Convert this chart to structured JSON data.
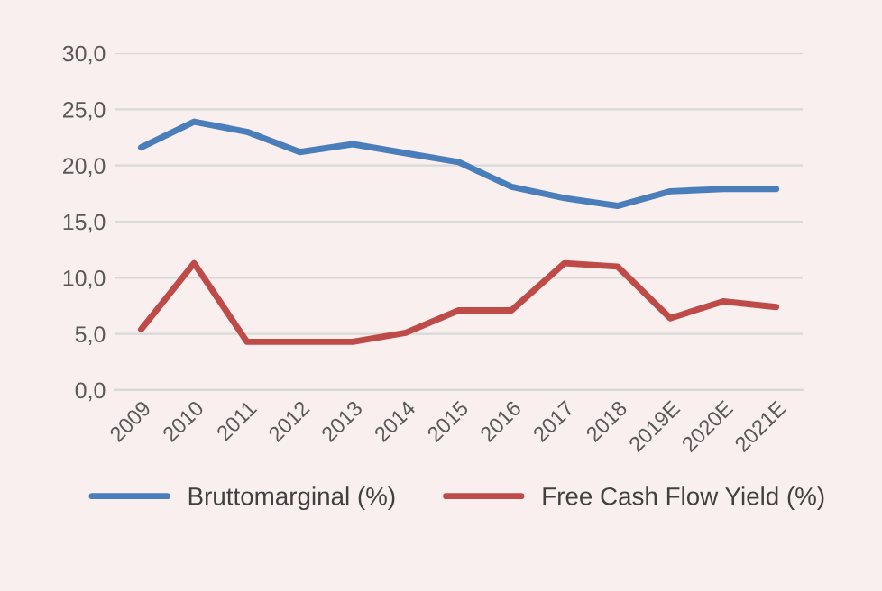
{
  "chart_data": {
    "type": "line",
    "categories": [
      "2009",
      "2010",
      "2011",
      "2012",
      "2013",
      "2014",
      "2015",
      "2016",
      "2017",
      "2018",
      "2019E",
      "2020E",
      "2021E"
    ],
    "series": [
      {
        "name": "Bruttomarginal (%)",
        "color": "#4a7ebb",
        "values": [
          21.6,
          23.9,
          23.0,
          21.2,
          21.9,
          21.1,
          20.3,
          18.1,
          17.1,
          16.4,
          17.7,
          17.9,
          17.9
        ]
      },
      {
        "name": "Free Cash Flow Yield (%)",
        "color": "#be4b48",
        "values": [
          5.4,
          11.3,
          4.3,
          4.3,
          4.3,
          5.1,
          7.1,
          7.1,
          11.3,
          11.0,
          6.4,
          7.9,
          7.4
        ]
      }
    ],
    "ylim": [
      0,
      30
    ],
    "yticks": [
      {
        "value": 0,
        "label": "0,0"
      },
      {
        "value": 5,
        "label": "5,0"
      },
      {
        "value": 10,
        "label": "10,0"
      },
      {
        "value": 15,
        "label": "15,0"
      },
      {
        "value": 20,
        "label": "20,0"
      },
      {
        "value": 25,
        "label": "25,0"
      },
      {
        "value": 30,
        "label": "30,0"
      }
    ],
    "grid": "y",
    "legend": "bottom",
    "marker": "none",
    "line_style": "solid"
  }
}
